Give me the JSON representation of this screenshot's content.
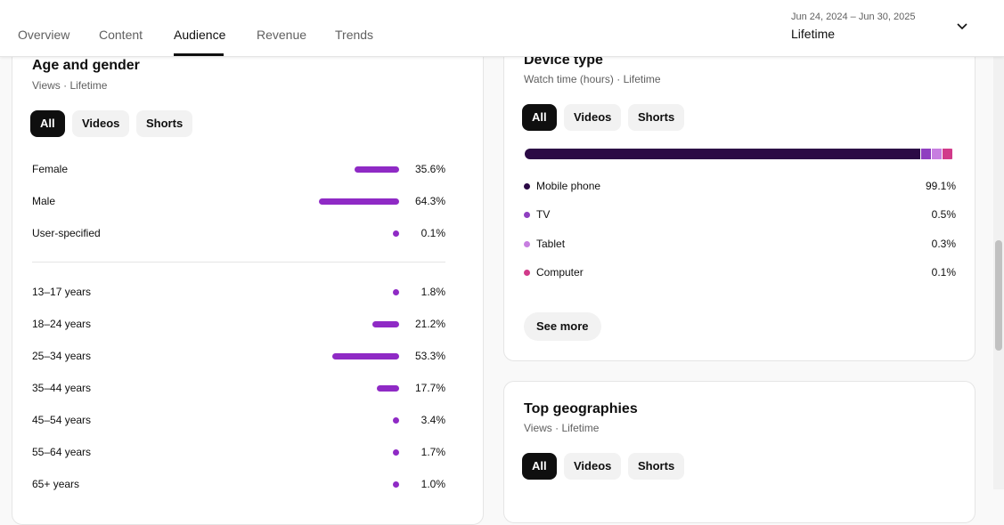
{
  "header": {
    "tabs": [
      {
        "label": "Overview"
      },
      {
        "label": "Content"
      },
      {
        "label": "Audience"
      },
      {
        "label": "Revenue"
      },
      {
        "label": "Trends"
      }
    ],
    "active_tab": "Audience",
    "date_range": "Jun 24, 2024 – Jun 30, 2025",
    "period": "Lifetime",
    "dropdown_icon": "chevron-down-icon"
  },
  "age_gender": {
    "title": "Age and gender",
    "subtitle": "Views · Lifetime",
    "filters": [
      "All",
      "Videos",
      "Shorts"
    ],
    "active_filter": "All",
    "gender": [
      {
        "label": "Female",
        "value": "35.6%",
        "pct": 35.6
      },
      {
        "label": "Male",
        "value": "64.3%",
        "pct": 64.3
      },
      {
        "label": "User-specified",
        "value": "0.1%",
        "pct": 0.1
      }
    ],
    "age": [
      {
        "label": "13–17 years",
        "value": "1.8%",
        "pct": 1.8
      },
      {
        "label": "18–24 years",
        "value": "21.2%",
        "pct": 21.2
      },
      {
        "label": "25–34 years",
        "value": "53.3%",
        "pct": 53.3
      },
      {
        "label": "35–44 years",
        "value": "17.7%",
        "pct": 17.7
      },
      {
        "label": "45–54 years",
        "value": "3.4%",
        "pct": 3.4
      },
      {
        "label": "55–64 years",
        "value": "1.7%",
        "pct": 1.7
      },
      {
        "label": "65+ years",
        "value": "1.0%",
        "pct": 1.0
      }
    ],
    "bar_color": "#8f2ac5"
  },
  "device": {
    "title": "Device type",
    "subtitle": "Watch time (hours) · Lifetime",
    "filters": [
      "All",
      "Videos",
      "Shorts"
    ],
    "active_filter": "All",
    "items": [
      {
        "label": "Mobile phone",
        "value": "99.1%",
        "pct": 99.1,
        "color": "#2b0a45"
      },
      {
        "label": "TV",
        "value": "0.5%",
        "pct": 0.5,
        "color": "#8f3fc0"
      },
      {
        "label": "Tablet",
        "value": "0.3%",
        "pct": 0.3,
        "color": "#c77ee0"
      },
      {
        "label": "Computer",
        "value": "0.1%",
        "pct": 0.1,
        "color": "#d13a8a"
      }
    ],
    "see_more": "See more"
  },
  "geo": {
    "title": "Top geographies",
    "subtitle": "Views · Lifetime",
    "filters": [
      "All",
      "Videos",
      "Shorts"
    ],
    "active_filter": "All"
  }
}
